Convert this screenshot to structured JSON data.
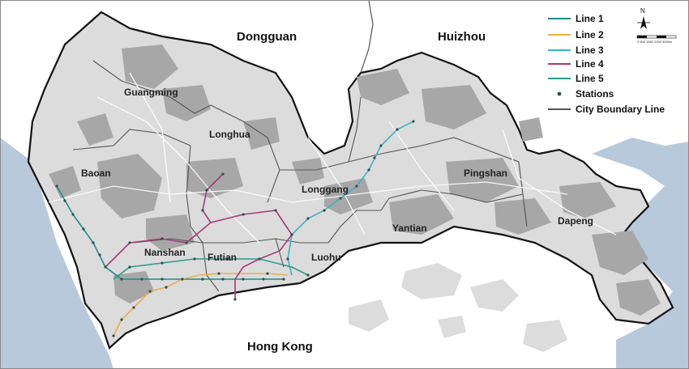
{
  "neighbors": {
    "dongguan": "Dongguan",
    "huizhou": "Huizhou",
    "hong_kong": "Hong Kong"
  },
  "districts": {
    "guangming": "Guangming",
    "longhua": "Longhua",
    "baoan": "Baoan",
    "longgang": "Longgang",
    "pingshan": "Pingshan",
    "nanshan": "Nanshan",
    "futian": "Futian",
    "luohu": "Luohu",
    "yantian": "Yantian",
    "dapeng": "Dapeng"
  },
  "legend": {
    "line1": "Line 1",
    "line2": "Line 2",
    "line3": "Line 3",
    "line4": "Line 4",
    "line5": "Line 5",
    "stations": "Stations",
    "boundary": "City Boundary Line"
  },
  "north_arrow": "N",
  "scale": {
    "label": "0 500 1500 2000   5000m"
  },
  "colors": {
    "line1": "#1f8a8a",
    "line2": "#e8b04a",
    "line3": "#3bb3c0",
    "line4": "#a83a78",
    "line5": "#2e9a8c",
    "station": "#2f4f4f",
    "boundary": "#555555",
    "land": "#dcdcdc",
    "built": "#a7a7a7",
    "sea": "#b9c9dc",
    "outline": "#111111"
  }
}
